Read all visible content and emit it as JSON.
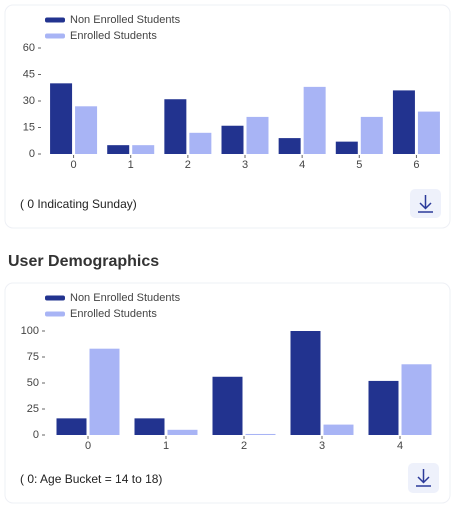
{
  "chart_data": [
    {
      "type": "bar",
      "categories": [
        "0",
        "1",
        "2",
        "3",
        "4",
        "5",
        "6"
      ],
      "series": [
        {
          "name": "Non Enrolled Students",
          "color": "#22338f",
          "values": [
            40,
            5,
            31,
            16,
            9,
            7,
            36
          ]
        },
        {
          "name": "Enrolled Students",
          "color": "#a8b4f5",
          "values": [
            27,
            5,
            12,
            21,
            38,
            21,
            24
          ]
        }
      ],
      "ylim": [
        0,
        60
      ],
      "yticks": [
        0,
        15,
        30,
        45,
        60
      ],
      "note": "( 0  Indicating Sunday)"
    },
    {
      "type": "bar",
      "title": "User Demographics",
      "categories": [
        "0",
        "1",
        "2",
        "3",
        "4"
      ],
      "series": [
        {
          "name": "Non Enrolled Students",
          "color": "#22338f",
          "values": [
            16,
            16,
            56,
            100,
            52
          ]
        },
        {
          "name": "Enrolled Students",
          "color": "#a8b4f5",
          "values": [
            83,
            5,
            1,
            10,
            68
          ]
        }
      ],
      "ylim": [
        0,
        100
      ],
      "yticks": [
        0,
        25,
        50,
        75,
        100
      ],
      "note": "( 0: Age Bucket = 14 to 18)"
    }
  ]
}
